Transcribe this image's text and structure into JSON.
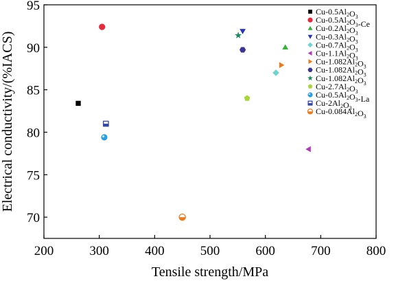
{
  "chart_data": {
    "type": "scatter",
    "title": "",
    "xlabel": "Tensile strength/MPa",
    "ylabel": "Electrical conductivity/(%IACS)",
    "xlim": [
      200,
      800
    ],
    "ylim": [
      67.5,
      95
    ],
    "x_ticks": [
      200,
      300,
      400,
      500,
      600,
      700,
      800
    ],
    "y_ticks": [
      70,
      75,
      80,
      85,
      90,
      95
    ],
    "grid": false,
    "legend_position": "top-right",
    "series": [
      {
        "name": "Cu-0.5Al2O3",
        "label_base": "Cu-0.5Al",
        "label_sub": "2",
        "label_mid": "O",
        "label_sub2": "3",
        "label_tail": "",
        "marker": "square",
        "color": "#000000",
        "x": [
          262
        ],
        "y": [
          83.4
        ]
      },
      {
        "name": "Cu-0.5Al2O3-Ce",
        "label_base": "Cu-0.5Al",
        "label_sub": "2",
        "label_mid": "O",
        "label_sub2": "3",
        "label_tail": "-Ce",
        "marker": "circle",
        "color": "#e8283c",
        "x": [
          305
        ],
        "y": [
          92.4
        ]
      },
      {
        "name": "Cu-0.2Al2O3",
        "label_base": "Cu-0.2Al",
        "label_sub": "2",
        "label_mid": "O",
        "label_sub2": "3",
        "label_tail": "",
        "marker": "triangle-up",
        "color": "#35b23a",
        "x": [
          636
        ],
        "y": [
          90.0
        ]
      },
      {
        "name": "Cu-0.3Al2O3",
        "label_base": "Cu-0.3Al",
        "label_sub": "2",
        "label_mid": "O",
        "label_sub2": "3",
        "label_tail": "",
        "marker": "triangle-down",
        "color": "#2b35b8",
        "x": [
          559
        ],
        "y": [
          91.9
        ]
      },
      {
        "name": "Cu-0.7Al2O3",
        "label_base": "Cu-0.7Al",
        "label_sub": "2",
        "label_mid": "O",
        "label_sub2": "3",
        "label_tail": "",
        "marker": "diamond",
        "color": "#6fd3d3",
        "x": [
          619
        ],
        "y": [
          87.0
        ]
      },
      {
        "name": "Cu-1.1Al2O3",
        "label_base": "Cu-1.1Al",
        "label_sub": "2",
        "label_mid": "O",
        "label_sub2": "3",
        "label_tail": "",
        "marker": "triangle-left",
        "color": "#b23ab8",
        "x": [
          678
        ],
        "y": [
          78.0
        ]
      },
      {
        "name": "Cu-1.082Al2O3",
        "label_base": "Cu-1.082Al",
        "label_sub": "2",
        "label_mid": "O",
        "label_sub2": "3",
        "label_tail": "",
        "marker": "triangle-right",
        "color": "#f07a1a",
        "x": [
          629
        ],
        "y": [
          87.9
        ]
      },
      {
        "name": "Cu-1.082Al2O3",
        "label_base": "Cu-1.082Al",
        "label_sub": "2",
        "label_mid": "O",
        "label_sub2": "3",
        "label_tail": "",
        "marker": "hexagon",
        "color": "#3b3596",
        "x": [
          559
        ],
        "y": [
          89.7
        ]
      },
      {
        "name": "Cu-1.082Al2O3",
        "label_base": "Cu-1.082Al",
        "label_sub": "2",
        "label_mid": "O",
        "label_sub2": "3",
        "label_tail": "",
        "marker": "star",
        "color": "#1f8a5e",
        "x": [
          551
        ],
        "y": [
          91.4
        ]
      },
      {
        "name": "Cu-2.7Al2O3",
        "label_base": "Cu-2.7Al",
        "label_sub": "2",
        "label_mid": "O",
        "label_sub2": "3",
        "label_tail": "",
        "marker": "pentagon",
        "color": "#a8d63a",
        "x": [
          567
        ],
        "y": [
          84.0
        ]
      },
      {
        "name": "Cu-0.5Al2O3-La",
        "label_base": "Cu-0.5Al",
        "label_sub": "2",
        "label_mid": "O",
        "label_sub2": "3",
        "label_tail": "-La",
        "marker": "circle-shaded",
        "color": "#2a9ee0",
        "x": [
          309
        ],
        "y": [
          79.4
        ]
      },
      {
        "name": "Cu-2Al2O3",
        "label_base": "Cu-2Al",
        "label_sub": "2",
        "label_mid": "O",
        "label_sub2": "3",
        "label_tail": "",
        "marker": "square-half",
        "color": "#3346a8",
        "x": [
          312
        ],
        "y": [
          81.0
        ]
      },
      {
        "name": "Cu-0.084Al2O3",
        "label_base": "Cu-0.084Al",
        "label_sub": "2",
        "label_mid": "O",
        "label_sub2": "3",
        "label_tail": "",
        "marker": "circle-half",
        "color": "#f07a1a",
        "x": [
          450
        ],
        "y": [
          70.0
        ]
      }
    ]
  }
}
